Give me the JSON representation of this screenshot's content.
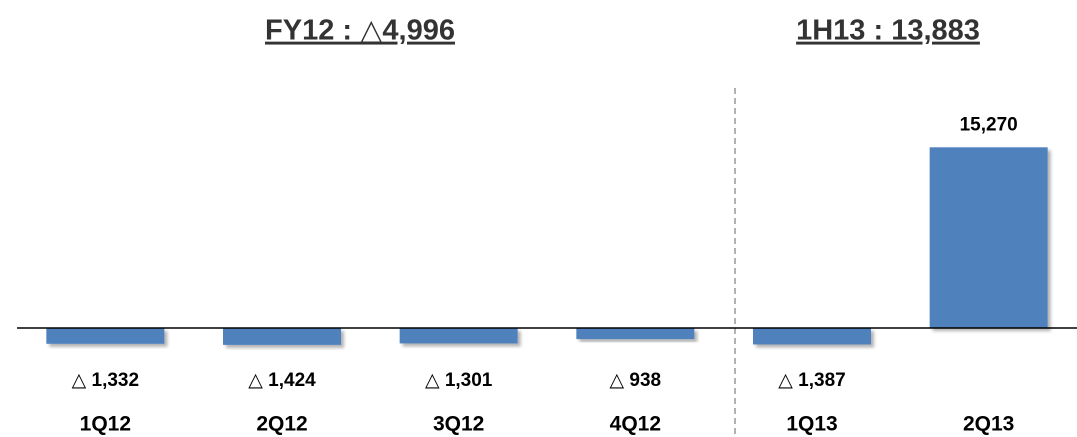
{
  "chart_data": {
    "type": "bar",
    "annotations": [
      "FY12 : △4,996",
      "1H13 : 13,883"
    ],
    "categories": [
      "1Q12",
      "2Q12",
      "3Q12",
      "4Q12",
      "1Q13",
      "2Q13"
    ],
    "values": [
      -1332,
      -1424,
      -1301,
      -938,
      -1387,
      15270
    ],
    "value_labels": [
      "△ 1,332",
      "△ 1,424",
      "△ 1,301",
      "△ 938",
      "△ 1,387",
      "15,270"
    ],
    "color": "#4f81bd",
    "ylim": [
      -2000,
      18000
    ]
  }
}
